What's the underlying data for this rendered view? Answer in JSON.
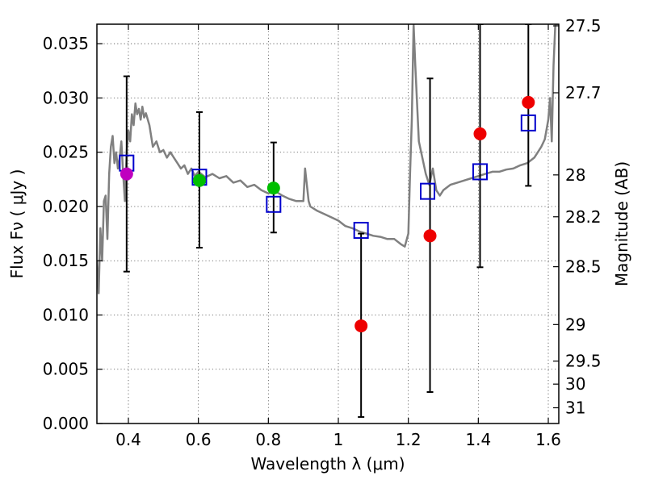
{
  "chart_data": {
    "type": "scatter",
    "xlabel": "Wavelength  λ (μm)",
    "ylabel": "Flux  Fν  ( μJy )",
    "y2label": "Magnitude (AB)",
    "xlim": [
      0.31,
      1.63
    ],
    "ylim": [
      0.0,
      0.0368
    ],
    "x_ticks": [
      {
        "value": 0.4,
        "label": "0.4"
      },
      {
        "value": 0.6,
        "label": "0.6"
      },
      {
        "value": 0.8,
        "label": "0.8"
      },
      {
        "value": 1.0,
        "label": "1"
      },
      {
        "value": 1.2,
        "label": "1.2"
      },
      {
        "value": 1.4,
        "label": "1.4"
      },
      {
        "value": 1.6,
        "label": "1.6"
      }
    ],
    "y_ticks": [
      {
        "value": 0.0,
        "label": "0.000"
      },
      {
        "value": 0.005,
        "label": "0.005"
      },
      {
        "value": 0.01,
        "label": "0.010"
      },
      {
        "value": 0.015,
        "label": "0.015"
      },
      {
        "value": 0.02,
        "label": "0.020"
      },
      {
        "value": 0.025,
        "label": "0.025"
      },
      {
        "value": 0.03,
        "label": "0.030"
      },
      {
        "value": 0.035,
        "label": "0.035"
      }
    ],
    "y2_ticks": [
      {
        "flux": 0.03665,
        "label": "27.5"
      },
      {
        "flux": 0.03048,
        "label": "27.7"
      },
      {
        "flux": 0.02291,
        "label": "28"
      },
      {
        "flux": 0.01905,
        "label": "28.2"
      },
      {
        "flux": 0.01445,
        "label": "28.5"
      },
      {
        "flux": 0.00912,
        "label": "29"
      },
      {
        "flux": 0.00575,
        "label": "29.5"
      },
      {
        "flux": 0.00363,
        "label": "30"
      },
      {
        "flux": 0.00145,
        "label": "31"
      }
    ],
    "colors": {
      "sed": "#808080",
      "model_box": "#0000cc",
      "magenta": "#bf00bf",
      "green": "#00bf00",
      "red": "#ee0000",
      "error": "#000000"
    },
    "model_points": [
      {
        "x": 0.395,
        "y": 0.024
      },
      {
        "x": 0.603,
        "y": 0.0227
      },
      {
        "x": 0.815,
        "y": 0.0202
      },
      {
        "x": 1.065,
        "y": 0.0178
      },
      {
        "x": 1.255,
        "y": 0.0214
      },
      {
        "x": 1.405,
        "y": 0.0232
      },
      {
        "x": 1.543,
        "y": 0.0277
      }
    ],
    "observed_points": [
      {
        "x": 0.395,
        "y": 0.023,
        "color": "magenta",
        "err_low": 0.014,
        "err_high": 0.032
      },
      {
        "x": 0.603,
        "y": 0.0224,
        "color": "green",
        "err_low": 0.0162,
        "err_high": 0.0287
      },
      {
        "x": 0.815,
        "y": 0.0217,
        "color": "green",
        "err_low": 0.0176,
        "err_high": 0.0259
      },
      {
        "x": 1.065,
        "y": 0.009,
        "color": "red",
        "err_low": 0.0006,
        "err_high": 0.0175
      },
      {
        "x": 1.262,
        "y": 0.0173,
        "color": "red",
        "err_low": 0.0029,
        "err_high": 0.0318
      },
      {
        "x": 1.405,
        "y": 0.0267,
        "color": "red",
        "err_low": 0.0144,
        "err_high": 0.0368
      },
      {
        "x": 1.543,
        "y": 0.0296,
        "color": "red",
        "err_low": 0.0219,
        "err_high": 0.0368
      }
    ],
    "sed_curve": {
      "x": [
        0.31,
        0.315,
        0.32,
        0.325,
        0.33,
        0.335,
        0.34,
        0.345,
        0.35,
        0.355,
        0.36,
        0.365,
        0.37,
        0.375,
        0.38,
        0.385,
        0.39,
        0.395,
        0.4,
        0.405,
        0.41,
        0.415,
        0.42,
        0.425,
        0.43,
        0.435,
        0.44,
        0.445,
        0.45,
        0.46,
        0.47,
        0.48,
        0.49,
        0.5,
        0.51,
        0.52,
        0.53,
        0.54,
        0.55,
        0.56,
        0.57,
        0.58,
        0.59,
        0.6,
        0.62,
        0.64,
        0.66,
        0.68,
        0.7,
        0.72,
        0.74,
        0.76,
        0.78,
        0.8,
        0.82,
        0.84,
        0.86,
        0.88,
        0.9,
        0.905,
        0.91,
        0.915,
        0.92,
        0.94,
        0.96,
        0.98,
        1.0,
        1.02,
        1.04,
        1.06,
        1.08,
        1.1,
        1.12,
        1.14,
        1.16,
        1.18,
        1.19,
        1.2,
        1.205,
        1.21,
        1.215,
        1.22,
        1.23,
        1.24,
        1.25,
        1.26,
        1.27,
        1.28,
        1.29,
        1.3,
        1.32,
        1.34,
        1.36,
        1.38,
        1.4,
        1.42,
        1.44,
        1.46,
        1.48,
        1.5,
        1.52,
        1.54,
        1.56,
        1.58,
        1.59,
        1.6,
        1.605,
        1.61,
        1.615,
        1.62,
        1.63
      ],
      "y": [
        0.015,
        0.012,
        0.018,
        0.015,
        0.0205,
        0.021,
        0.017,
        0.023,
        0.0255,
        0.0265,
        0.024,
        0.025,
        0.0235,
        0.0245,
        0.026,
        0.023,
        0.0205,
        0.025,
        0.027,
        0.026,
        0.0285,
        0.0275,
        0.0295,
        0.0285,
        0.029,
        0.028,
        0.0292,
        0.0282,
        0.0286,
        0.0275,
        0.0255,
        0.026,
        0.025,
        0.0252,
        0.0245,
        0.025,
        0.0245,
        0.024,
        0.0235,
        0.0238,
        0.023,
        0.0235,
        0.0228,
        0.0232,
        0.0227,
        0.023,
        0.0226,
        0.0228,
        0.0222,
        0.0224,
        0.0218,
        0.022,
        0.0215,
        0.0212,
        0.0214,
        0.021,
        0.0207,
        0.0205,
        0.0205,
        0.0235,
        0.022,
        0.0205,
        0.02,
        0.0196,
        0.0193,
        0.019,
        0.0187,
        0.0182,
        0.018,
        0.0177,
        0.0175,
        0.0173,
        0.0172,
        0.017,
        0.017,
        0.0165,
        0.0163,
        0.0175,
        0.023,
        0.028,
        0.0368,
        0.033,
        0.026,
        0.0245,
        0.023,
        0.022,
        0.0235,
        0.0215,
        0.021,
        0.0215,
        0.022,
        0.0222,
        0.0224,
        0.0226,
        0.0228,
        0.023,
        0.0232,
        0.0232,
        0.0234,
        0.0235,
        0.0238,
        0.024,
        0.0245,
        0.0255,
        0.0262,
        0.028,
        0.03,
        0.026,
        0.033,
        0.0368,
        0.0368
      ]
    }
  }
}
